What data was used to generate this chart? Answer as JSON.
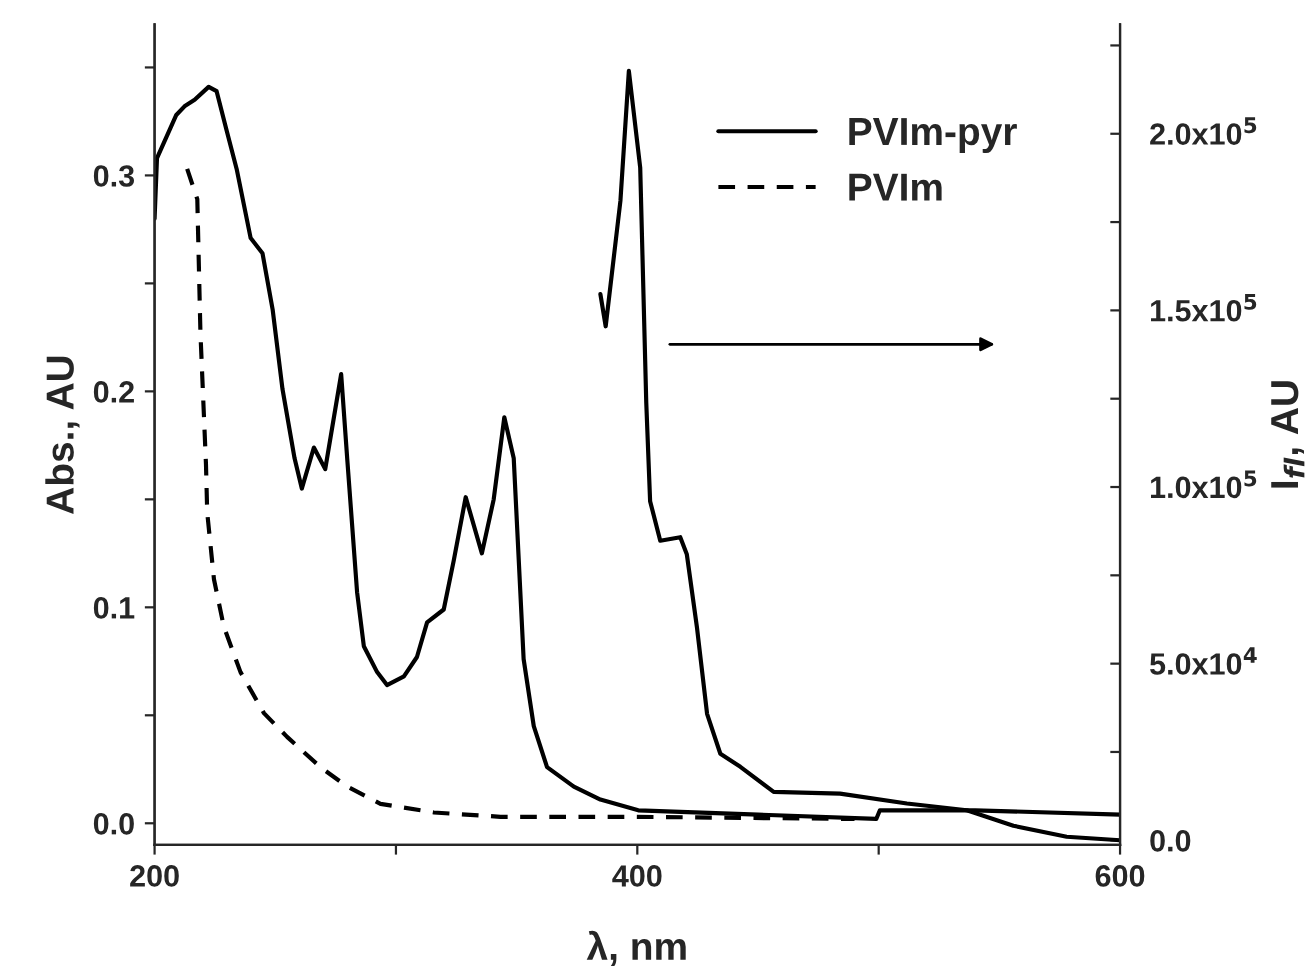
{
  "chart_data": {
    "type": "line",
    "xlabel": "λ, nm",
    "ylabel": "Abs., AU",
    "y2label": "I$_{fl}$, AU",
    "xlim": [
      200,
      600
    ],
    "xticks": [
      200,
      {
        "value": 300,
        "label": null
      },
      400,
      {
        "value": 500,
        "label": null
      },
      600
    ],
    "ylim": [
      -0.01,
      0.37
    ],
    "yticks": [
      {
        "value": 0,
        "label": "0.0"
      },
      {
        "value": 0.05,
        "label": null
      },
      {
        "value": 0.1,
        "label": "0.1"
      },
      {
        "value": 0.15,
        "label": null
      },
      {
        "value": 0.2,
        "label": "0.2"
      },
      {
        "value": 0.25,
        "label": null
      },
      {
        "value": 0.3,
        "label": "0.3"
      },
      {
        "value": 0.35,
        "label": null
      }
    ],
    "y2lim": [
      -1300,
      231000
    ],
    "y2ticks": [
      {
        "value": 0,
        "label": "0.0"
      },
      {
        "value": 25000,
        "label": null
      },
      {
        "value": 50000,
        "label": "5.0x10$^{4}$"
      },
      {
        "value": 75000,
        "label": null
      },
      {
        "value": 100000,
        "label": "1.0x10$^{5}$"
      },
      {
        "value": 125000,
        "label": null
      },
      {
        "value": 150000,
        "label": "1.5x10$^{5}$"
      },
      {
        "value": 175000,
        "label": null
      },
      {
        "value": 200000,
        "label": "2.0x10$^{5}$"
      },
      {
        "value": 225000,
        "label": null
      }
    ],
    "legend": "top right",
    "grid": false,
    "series": [
      {
        "name": "PVIm-pyr",
        "color": "#000000",
        "line_style": "solid",
        "x": [
          200,
          201,
          209,
          212.4,
          216.6,
          222.4,
          225.7,
          229.8,
          234,
          239.8,
          244.7,
          248.9,
          253,
          258,
          261,
          266,
          270.7,
          277.3,
          279.8,
          283.9,
          286.7,
          292.2,
          296.3,
          303.3,
          308.7,
          312.9,
          319.8,
          324,
          328.9,
          335.6,
          340.5,
          344.9,
          348.8,
          352.9,
          357.1,
          362.6,
          373.7,
          384.7,
          400.4,
          450,
          499,
          500.5,
          540,
          600
        ],
        "values": [
          0.28,
          0.308,
          0.328,
          0.332,
          0.335,
          0.341,
          0.339,
          0.321,
          0.303,
          0.271,
          0.264,
          0.238,
          0.201,
          0.169,
          0.155,
          0.174,
          0.164,
          0.208,
          0.169,
          0.107,
          0.082,
          0.07,
          0.064,
          0.068,
          0.077,
          0.093,
          0.099,
          0.122,
          0.151,
          0.125,
          0.15,
          0.188,
          0.169,
          0.076,
          0.045,
          0.026,
          0.017,
          0.011,
          0.006,
          0.004,
          0.002,
          0.006,
          0.006,
          0.004
        ]
      },
      {
        "name": "PVIm",
        "color": "#000000",
        "line_style": "dashed",
        "x": [
          213.5,
          217.7,
          219,
          221.3,
          221.8,
          224.6,
          228.7,
          235.6,
          245.3,
          254.9,
          268.7,
          279.8,
          293.6,
          315.7,
          343.3,
          398.5,
          490
        ],
        "values": [
          0.303,
          0.289,
          0.227,
          0.166,
          0.144,
          0.113,
          0.091,
          0.07,
          0.051,
          0.04,
          0.026,
          0.017,
          0.009,
          0.005,
          0.003,
          0.003,
          0.002
        ]
      },
      {
        "color": "#000000",
        "line_style": "solid",
        "axis": "y2",
        "x": [
          384.7,
          386.9,
          393,
          396.5,
          401.2,
          403.7,
          405.3,
          409.5,
          417.8,
          420.5,
          424.7,
          428.9,
          434.4,
          442.7,
          456.5,
          484,
          511.7,
          536.5,
          555.8,
          577.9,
          600
        ],
        "values": [
          154600,
          145500,
          181000,
          217800,
          190400,
          124000,
          96000,
          84800,
          85800,
          81000,
          60300,
          35800,
          24500,
          20800,
          13700,
          13200,
          10400,
          8500,
          4100,
          1000,
          0
        ]
      }
    ]
  }
}
